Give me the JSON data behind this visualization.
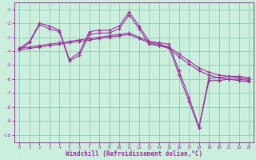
{
  "xlabel": "Windchill (Refroidissement éolien,°C)",
  "bg_color": "#cceedd",
  "grid_color": "#99ccbb",
  "line_color": "#993399",
  "ylim": [
    -10.5,
    -0.5
  ],
  "xlim": [
    -0.5,
    23.5
  ],
  "yticks": [
    -10,
    -9,
    -8,
    -7,
    -6,
    -5,
    -4,
    -3,
    -2,
    -1
  ],
  "xticks": [
    0,
    1,
    2,
    3,
    4,
    5,
    6,
    7,
    8,
    9,
    10,
    11,
    12,
    13,
    14,
    15,
    16,
    17,
    18,
    19,
    20,
    21,
    22,
    23
  ],
  "lines": [
    {
      "x": [
        0,
        1,
        2,
        3,
        4,
        5,
        6,
        7,
        8,
        9,
        10,
        11,
        12,
        13,
        14,
        15,
        16,
        17,
        18,
        19,
        20,
        21,
        22,
        23
      ],
      "y": [
        -3.8,
        -3.3,
        -2.0,
        -2.2,
        -2.5,
        -4.6,
        -4.1,
        -2.6,
        -2.5,
        -2.5,
        -2.2,
        -1.2,
        -2.2,
        -3.3,
        -3.4,
        -3.5,
        -5.4,
        -7.3,
        -9.4,
        -5.9,
        -5.9,
        -5.8,
        -5.8,
        -5.9
      ]
    },
    {
      "x": [
        0,
        1,
        2,
        3,
        4,
        5,
        6,
        7,
        8,
        9,
        10,
        11,
        12,
        13,
        14,
        15,
        16,
        17,
        18,
        19,
        20,
        21,
        22,
        23
      ],
      "y": [
        -3.9,
        -3.4,
        -2.1,
        -2.4,
        -2.6,
        -4.7,
        -4.3,
        -2.8,
        -2.7,
        -2.7,
        -2.4,
        -1.4,
        -2.4,
        -3.5,
        -3.6,
        -3.7,
        -5.7,
        -7.6,
        -9.5,
        -6.1,
        -6.1,
        -6.0,
        -6.0,
        -6.1
      ]
    },
    {
      "x": [
        0,
        1,
        2,
        3,
        4,
        5,
        6,
        7,
        8,
        9,
        10,
        11,
        12,
        13,
        14,
        15,
        16,
        17,
        18,
        19,
        20,
        21,
        22,
        23
      ],
      "y": [
        -3.8,
        -3.7,
        -3.6,
        -3.5,
        -3.4,
        -3.3,
        -3.2,
        -3.1,
        -3.0,
        -2.9,
        -2.8,
        -2.7,
        -3.0,
        -3.3,
        -3.5,
        -3.7,
        -4.2,
        -4.7,
        -5.2,
        -5.5,
        -5.7,
        -5.8,
        -5.9,
        -6.0
      ]
    },
    {
      "x": [
        0,
        1,
        2,
        3,
        4,
        5,
        6,
        7,
        8,
        9,
        10,
        11,
        12,
        13,
        14,
        15,
        16,
        17,
        18,
        19,
        20,
        21,
        22,
        23
      ],
      "y": [
        -3.9,
        -3.8,
        -3.7,
        -3.6,
        -3.5,
        -3.4,
        -3.3,
        -3.2,
        -3.1,
        -3.0,
        -2.9,
        -2.8,
        -3.1,
        -3.4,
        -3.6,
        -3.8,
        -4.4,
        -4.9,
        -5.4,
        -5.7,
        -5.9,
        -6.0,
        -6.1,
        -6.2
      ]
    }
  ]
}
